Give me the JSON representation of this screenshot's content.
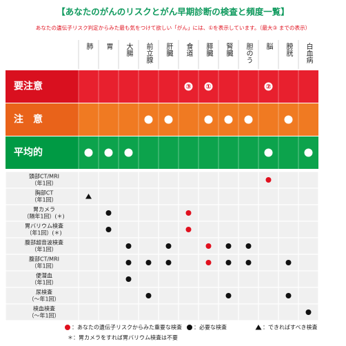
{
  "header": {
    "title": "【あなたのがんのリスクとがん早期診断の検査と頻度一覧】",
    "subtitle": "あなたの遺伝子リスク判定からみた最も気をつけて欲しい「がん」には、①を表示しています。（最大③ までの表示）"
  },
  "columns": [
    "肺",
    "胃",
    "大腸",
    "前立腺",
    "肝臓",
    "食道",
    "膵臓",
    "腎臓",
    "胆のう",
    "脳",
    "膀胱",
    "白血病"
  ],
  "risk_rows": [
    {
      "label": "要注意",
      "color": "#d9101f",
      "cell_color": "#e8202e",
      "cells": [
        null,
        null,
        null,
        null,
        null,
        "③",
        "①",
        null,
        null,
        "②",
        null,
        null
      ]
    },
    {
      "label": "注　意",
      "color": "#e9631a",
      "cell_color": "#f07a22",
      "cells": [
        null,
        null,
        null,
        "dot",
        "dot",
        null,
        "dot",
        "dot",
        "dot",
        null,
        "dot",
        null
      ]
    },
    {
      "label": "平均的",
      "color": "#009a44",
      "cell_color": "#0ca34c",
      "cells": [
        "dot",
        "dot",
        "dot",
        null,
        null,
        null,
        null,
        null,
        null,
        "dot",
        null,
        "dot"
      ]
    }
  ],
  "exam_rows": [
    {
      "label": [
        "頭部CT/MRI",
        "（年1回）"
      ],
      "cells": [
        null,
        null,
        null,
        null,
        null,
        null,
        null,
        null,
        null,
        "red",
        null,
        null
      ]
    },
    {
      "label": [
        "胸部CT",
        "（年1回）"
      ],
      "cells": [
        "triangle",
        null,
        null,
        null,
        null,
        null,
        null,
        null,
        null,
        null,
        null,
        null
      ]
    },
    {
      "label": [
        "胃カメラ",
        "（隔年1回）(＊)"
      ],
      "cells": [
        null,
        "black",
        null,
        null,
        null,
        "red",
        null,
        null,
        null,
        null,
        null,
        null
      ]
    },
    {
      "label": [
        "胃バリウム検査",
        "（年1回）(＊)"
      ],
      "cells": [
        null,
        "black",
        null,
        null,
        null,
        "red",
        null,
        null,
        null,
        null,
        null,
        null
      ]
    },
    {
      "label": [
        "腹部超音波検査",
        "（年1回）"
      ],
      "cells": [
        null,
        null,
        "black",
        null,
        "black",
        null,
        "red",
        "black",
        "black",
        null,
        null,
        null
      ]
    },
    {
      "label": [
        "腹部CT/MRI",
        "（年1回）"
      ],
      "cells": [
        null,
        null,
        "black",
        "black",
        "black",
        null,
        "red",
        "black",
        "black",
        null,
        "black",
        null
      ]
    },
    {
      "label": [
        "便潜血",
        "（年1回）"
      ],
      "cells": [
        null,
        null,
        "black",
        null,
        null,
        null,
        null,
        null,
        null,
        null,
        null,
        null
      ]
    },
    {
      "label": [
        "尿検査",
        "（〜年1回）"
      ],
      "cells": [
        null,
        null,
        null,
        "black",
        null,
        null,
        null,
        "black",
        null,
        null,
        "black",
        null
      ]
    },
    {
      "label": [
        "検血検査",
        "（〜年1回）"
      ],
      "cells": [
        null,
        null,
        null,
        null,
        null,
        null,
        null,
        null,
        null,
        null,
        null,
        "black"
      ]
    }
  ],
  "legend": [
    {
      "symbol": "red",
      "text": "：あなたの遺伝子リスクからみた重要な検査"
    },
    {
      "symbol": "black",
      "text": "：必要な検査"
    },
    {
      "symbol": "triangle",
      "text": "：できればすべき検査"
    }
  ],
  "note": "＊：胃カメラをすれば胃バリウム検査は不要"
}
